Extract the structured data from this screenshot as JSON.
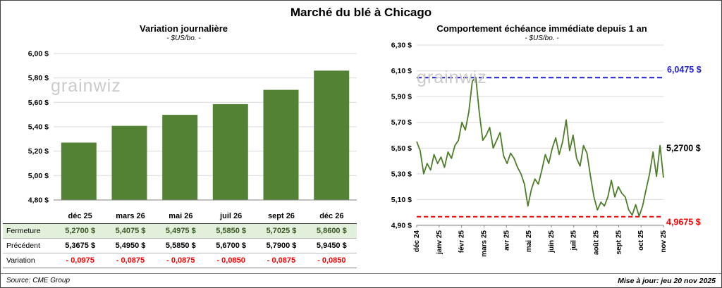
{
  "page_title": "Marché du blé à Chicago",
  "watermark": "grainwiz",
  "source": "Source: CME Group",
  "updated": "Mise à jour: jeu 20 nov 2025",
  "colors": {
    "bar": "#548235",
    "line": "#4e7d2a",
    "high": "#1f1fd1",
    "low": "#ff0000",
    "grid": "#d9d9d9",
    "axis": "#808080",
    "fermeture_bg": "#e2efda",
    "fermeture_text": "#375623",
    "variation_text": "#ff0000"
  },
  "table": {
    "rows": [
      {
        "key": "fermeture",
        "label": "Fermeture",
        "values": [
          "5,2700 $",
          "5,4075 $",
          "5,4975 $",
          "5,5850 $",
          "5,7025 $",
          "5,8600 $"
        ]
      },
      {
        "key": "precedent",
        "label": "Précédent",
        "values": [
          "5,3675 $",
          "5,4950 $",
          "5,5850 $",
          "5,6700 $",
          "5,7900 $",
          "5,9450 $"
        ]
      },
      {
        "key": "variation",
        "label": "Variation",
        "values": [
          "- 0,0975",
          "- 0,0875",
          "- 0,0875",
          "- 0,0850",
          "- 0,0875",
          "- 0,0850"
        ]
      }
    ]
  },
  "chart_data": [
    {
      "type": "bar",
      "title": "Variation journalière",
      "subtitle": "- $US/bo. -",
      "categories": [
        "déc 25",
        "mars 26",
        "mai 26",
        "juil 26",
        "sept 26",
        "déc 26"
      ],
      "values": [
        5.27,
        5.4075,
        5.4975,
        5.585,
        5.7025,
        5.86
      ],
      "ylim": [
        4.8,
        6.0
      ],
      "grid": true,
      "yticks": [
        {
          "value": 6.0,
          "label": "6,00 $"
        },
        {
          "value": 5.8,
          "label": "5,80 $"
        },
        {
          "value": 5.6,
          "label": "5,60 $"
        },
        {
          "value": 5.4,
          "label": "5,40 $"
        },
        {
          "value": 5.2,
          "label": "5,20 $"
        },
        {
          "value": 5.0,
          "label": "5,00 $"
        },
        {
          "value": 4.8,
          "label": "4,80 $"
        }
      ]
    },
    {
      "type": "line",
      "title": "Comportement échéance immédiate depuis 1 an",
      "subtitle": "- $US/bo. -",
      "x_labels": [
        "déc 24",
        "janv 25",
        "févr 25",
        "mars 25",
        "avr 25",
        "mai 25",
        "juin 25",
        "juil 25",
        "août 25",
        "sept 25",
        "oct 25",
        "nov 25"
      ],
      "ylim": [
        4.9,
        6.3
      ],
      "grid": true,
      "yticks": [
        {
          "value": 6.3,
          "label": "6,30 $"
        },
        {
          "value": 6.1,
          "label": "6,10 $"
        },
        {
          "value": 5.9,
          "label": "5,90 $"
        },
        {
          "value": 5.7,
          "label": "5,70 $"
        },
        {
          "value": 5.5,
          "label": "5,50 $"
        },
        {
          "value": 5.3,
          "label": "5,30 $"
        },
        {
          "value": 5.1,
          "label": "5,10 $"
        },
        {
          "value": 4.9,
          "label": "4,90 $"
        }
      ],
      "max_line": {
        "value": 6.0475,
        "label": "6,0475 $"
      },
      "min_line": {
        "value": 4.9675,
        "label": "4,9675 $"
      },
      "last_point": {
        "value": 5.27,
        "label": "5,2700 $"
      },
      "values": [
        5.55,
        5.48,
        5.3,
        5.38,
        5.33,
        5.45,
        5.38,
        5.43,
        5.35,
        5.47,
        5.42,
        5.52,
        5.56,
        5.7,
        5.64,
        5.78,
        6.02,
        6.05,
        5.78,
        5.56,
        5.6,
        5.66,
        5.5,
        5.56,
        5.62,
        5.44,
        5.38,
        5.46,
        5.42,
        5.35,
        5.3,
        5.22,
        5.05,
        5.18,
        5.26,
        5.22,
        5.33,
        5.45,
        5.38,
        5.5,
        5.58,
        5.45,
        5.55,
        5.72,
        5.48,
        5.6,
        5.42,
        5.36,
        5.52,
        5.46,
        5.28,
        5.12,
        5.02,
        5.08,
        5.05,
        5.12,
        5.25,
        5.12,
        5.2,
        5.15,
        5.12,
        5.02,
        4.98,
        5.06,
        4.97,
        5.05,
        5.18,
        5.3,
        5.47,
        5.28,
        5.52,
        5.27
      ]
    }
  ]
}
